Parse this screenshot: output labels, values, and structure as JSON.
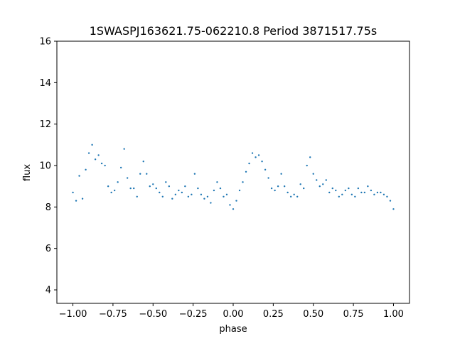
{
  "chart_data": {
    "type": "scatter",
    "title": "1SWASPJ163621.75-062210.8 Period 3871517.75s",
    "xlabel": "phase",
    "ylabel": "flux",
    "xlim": [
      -1.1,
      1.1
    ],
    "ylim": [
      3.35,
      16.0
    ],
    "x_ticks": [
      -1.0,
      -0.75,
      -0.5,
      -0.25,
      0.0,
      0.25,
      0.5,
      0.75,
      1.0
    ],
    "x_tick_labels": [
      "−1.00",
      "−0.75",
      "−0.50",
      "−0.25",
      "0.00",
      "0.25",
      "0.50",
      "0.75",
      "1.00"
    ],
    "y_ticks": [
      4,
      6,
      8,
      10,
      12,
      14,
      16
    ],
    "y_tick_labels": [
      "4",
      "6",
      "8",
      "10",
      "12",
      "14",
      "16"
    ],
    "grid": false,
    "legend": "none",
    "marker_color": "#1f77b4",
    "series": [
      {
        "x": [
          -1.0,
          -0.98,
          -0.96,
          -0.94,
          -0.92,
          -0.9,
          -0.88,
          -0.86,
          -0.84,
          -0.82,
          -0.8,
          -0.78,
          -0.76,
          -0.74,
          -0.72,
          -0.7,
          -0.68,
          -0.66,
          -0.64,
          -0.62,
          -0.6,
          -0.58,
          -0.56,
          -0.54,
          -0.52,
          -0.5,
          -0.48,
          -0.46,
          -0.44,
          -0.42,
          -0.4,
          -0.38,
          -0.36,
          -0.34,
          -0.32,
          -0.3,
          -0.28,
          -0.26,
          -0.24,
          -0.22,
          -0.2,
          -0.18,
          -0.16,
          -0.14,
          -0.12,
          -0.1,
          -0.08,
          -0.06,
          -0.04,
          -0.02,
          0.0,
          0.02,
          0.04,
          0.06,
          0.08,
          0.1,
          0.12,
          0.14,
          0.16,
          0.18,
          0.2,
          0.22,
          0.24,
          0.26,
          0.28,
          0.3,
          0.32,
          0.34,
          0.36,
          0.38,
          0.4,
          0.42,
          0.44,
          0.46,
          0.48,
          0.5,
          0.52,
          0.54,
          0.56,
          0.58,
          0.6,
          0.62,
          0.64,
          0.66,
          0.68,
          0.7,
          0.72,
          0.74,
          0.76,
          0.78,
          0.8,
          0.82,
          0.84,
          0.86,
          0.88,
          0.9,
          0.92,
          0.94,
          0.96,
          0.98,
          1.0
        ],
        "y": [
          8.7,
          8.3,
          9.5,
          8.4,
          9.8,
          10.6,
          11.0,
          10.3,
          10.5,
          10.1,
          10.0,
          9.0,
          8.7,
          8.8,
          9.2,
          9.9,
          10.8,
          9.4,
          8.9,
          8.9,
          8.5,
          9.6,
          10.2,
          9.6,
          9.0,
          9.1,
          8.9,
          8.7,
          8.5,
          9.2,
          9.0,
          8.4,
          8.6,
          8.8,
          8.7,
          9.0,
          8.5,
          8.6,
          9.6,
          8.9,
          8.6,
          8.4,
          8.5,
          8.2,
          8.8,
          9.2,
          8.9,
          8.5,
          8.6,
          8.1,
          7.9,
          8.3,
          8.8,
          9.2,
          9.7,
          10.1,
          10.6,
          10.4,
          10.5,
          10.2,
          9.8,
          9.4,
          8.9,
          8.8,
          9.0,
          9.6,
          9.0,
          8.7,
          8.5,
          8.6,
          8.5,
          9.1,
          8.9,
          10.0,
          10.4,
          9.6,
          9.3,
          9.0,
          9.1,
          9.3,
          8.7,
          8.9,
          8.8,
          8.5,
          8.6,
          8.8,
          8.9,
          8.6,
          8.5,
          8.9,
          8.7,
          8.7,
          9.0,
          8.8,
          8.6,
          8.7,
          8.7,
          8.6,
          8.5,
          8.3,
          7.9
        ]
      }
    ]
  }
}
